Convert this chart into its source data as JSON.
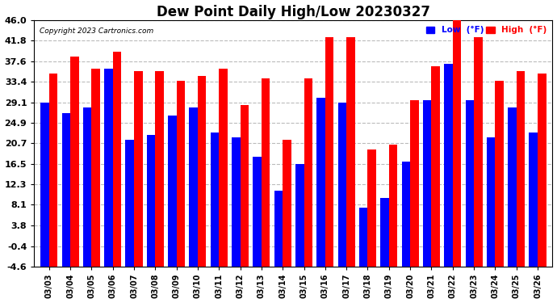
{
  "title": "Dew Point Daily High/Low 20230327",
  "copyright": "Copyright 2023 Cartronics.com",
  "dates": [
    "03/03",
    "03/04",
    "03/05",
    "03/06",
    "03/07",
    "03/08",
    "03/09",
    "03/10",
    "03/11",
    "03/12",
    "03/13",
    "03/14",
    "03/15",
    "03/16",
    "03/17",
    "03/18",
    "03/19",
    "03/20",
    "03/21",
    "03/22",
    "03/23",
    "03/24",
    "03/25",
    "03/26"
  ],
  "high": [
    35.0,
    38.5,
    36.0,
    39.5,
    35.5,
    35.5,
    33.5,
    34.5,
    36.0,
    28.5,
    34.0,
    21.5,
    34.0,
    42.5,
    42.5,
    19.5,
    20.5,
    29.5,
    36.5,
    46.0,
    42.5,
    33.5,
    35.5,
    35.0
  ],
  "low": [
    29.0,
    27.0,
    28.0,
    36.0,
    21.5,
    22.5,
    26.5,
    28.0,
    23.0,
    22.0,
    18.0,
    11.0,
    16.5,
    30.0,
    29.0,
    7.5,
    9.5,
    17.0,
    29.5,
    37.0,
    29.5,
    22.0,
    28.0,
    23.0
  ],
  "ylim": [
    -4.6,
    46.0
  ],
  "yticks": [
    -4.6,
    -0.4,
    3.8,
    8.1,
    12.3,
    16.5,
    20.7,
    24.9,
    29.1,
    33.4,
    37.6,
    41.8,
    46.0
  ],
  "ytick_labels": [
    "-4.6",
    "-0.4",
    "3.8",
    "8.1",
    "12.3",
    "16.5",
    "20.7",
    "24.9",
    "29.1",
    "33.4",
    "37.6",
    "41.8",
    "46.0"
  ],
  "high_color": "#ff0000",
  "low_color": "#0000ff",
  "background_color": "#ffffff",
  "grid_color": "#bbbbbb",
  "title_fontsize": 12,
  "bar_width": 0.4
}
